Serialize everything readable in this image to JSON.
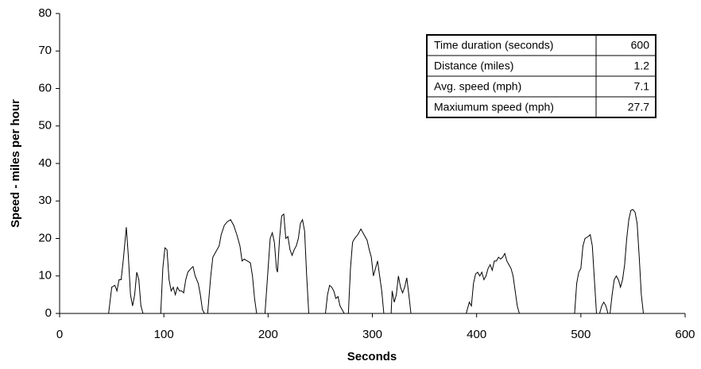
{
  "chart_data": {
    "type": "line",
    "xlabel": "Seconds",
    "ylabel": "Speed - miles per hour",
    "xlim": [
      0,
      600
    ],
    "xticks": [
      0,
      100,
      200,
      300,
      400,
      500,
      600
    ],
    "ylim": [
      0,
      80
    ],
    "yticks": [
      0,
      10,
      20,
      30,
      40,
      50,
      60,
      70,
      80
    ],
    "x": [
      0,
      47,
      50,
      53,
      55,
      57,
      59,
      61,
      63,
      64,
      66,
      68,
      70,
      72,
      74,
      76,
      78,
      80,
      97,
      99,
      101,
      103,
      105,
      107,
      109,
      111,
      113,
      115,
      117,
      119,
      121,
      123,
      126,
      128,
      130,
      133,
      135,
      137,
      139,
      142,
      145,
      147,
      149,
      151,
      153,
      155,
      158,
      161,
      164,
      167,
      170,
      173,
      175,
      177,
      180,
      183,
      185,
      187,
      189,
      197,
      200,
      202,
      204,
      206,
      208,
      209,
      211,
      213,
      215,
      217,
      219,
      221,
      223,
      225,
      227,
      229,
      231,
      233,
      235,
      237,
      239,
      255,
      257,
      259,
      261,
      263,
      265,
      267,
      269,
      271,
      273,
      277,
      279,
      281,
      283,
      286,
      289,
      292,
      295,
      297,
      299,
      301,
      303,
      305,
      307,
      309,
      311,
      318,
      319,
      321,
      323,
      325,
      327,
      329,
      331,
      333,
      335,
      337,
      390,
      393,
      395,
      397,
      399,
      401,
      403,
      405,
      407,
      409,
      411,
      413,
      415,
      417,
      419,
      421,
      423,
      425,
      427,
      429,
      431,
      433,
      435,
      437,
      439,
      441,
      494,
      496,
      498,
      500,
      502,
      504,
      507,
      509,
      511,
      513,
      515,
      518,
      520,
      522,
      524,
      526,
      528,
      530,
      532,
      534,
      536,
      538,
      540,
      542,
      544,
      546,
      548,
      550,
      552,
      554,
      556,
      558,
      560,
      563,
      600
    ],
    "series": [
      {
        "color": "#000000",
        "values": [
          0,
          0,
          7,
          7.5,
          6,
          9,
          9,
          14,
          20,
          23,
          15,
          5,
          2,
          5,
          11,
          9,
          2,
          0,
          0,
          12,
          17.5,
          17,
          9,
          6,
          7,
          5,
          7,
          6,
          6,
          5.5,
          9,
          11,
          12,
          12.5,
          10,
          8,
          5,
          1,
          0,
          0,
          10,
          15,
          16,
          17,
          18,
          21,
          23.5,
          24.5,
          25,
          23.5,
          21,
          18,
          14,
          14.5,
          14,
          13.5,
          10,
          4,
          0,
          0,
          12,
          20,
          21.5,
          19,
          12,
          11,
          20,
          26,
          26.5,
          20,
          20.5,
          17,
          15.5,
          17,
          18,
          20,
          24,
          25,
          22,
          10,
          0,
          0,
          5,
          7.5,
          7,
          6,
          4,
          4.5,
          2,
          1,
          0,
          0,
          12,
          19,
          20,
          21,
          22.5,
          21,
          19.5,
          17,
          15,
          10,
          12,
          14,
          10,
          6,
          0,
          0,
          6,
          3,
          5,
          10,
          7,
          5.5,
          7,
          9.5,
          5,
          0,
          0,
          3,
          2,
          8,
          10.5,
          11,
          10,
          11,
          9,
          10,
          12,
          13,
          11.5,
          14,
          14,
          15,
          14.5,
          15,
          16,
          14,
          13,
          12,
          10,
          6,
          2,
          0,
          0,
          8,
          11,
          12,
          18,
          20,
          20.5,
          21,
          18,
          9,
          0,
          0,
          2,
          3,
          2,
          0,
          0,
          5,
          9,
          10,
          9,
          7,
          9,
          13,
          20,
          25,
          27.5,
          27.7,
          27,
          24,
          15,
          5,
          0,
          0,
          0
        ]
      }
    ],
    "table": {
      "rows": [
        [
          "Time duration (seconds)",
          600
        ],
        [
          "Distance (miles)",
          1.2
        ],
        [
          "Avg. speed (mph)",
          7.1
        ],
        [
          "Maxiumum speed (mph)",
          27.7
        ]
      ]
    }
  }
}
